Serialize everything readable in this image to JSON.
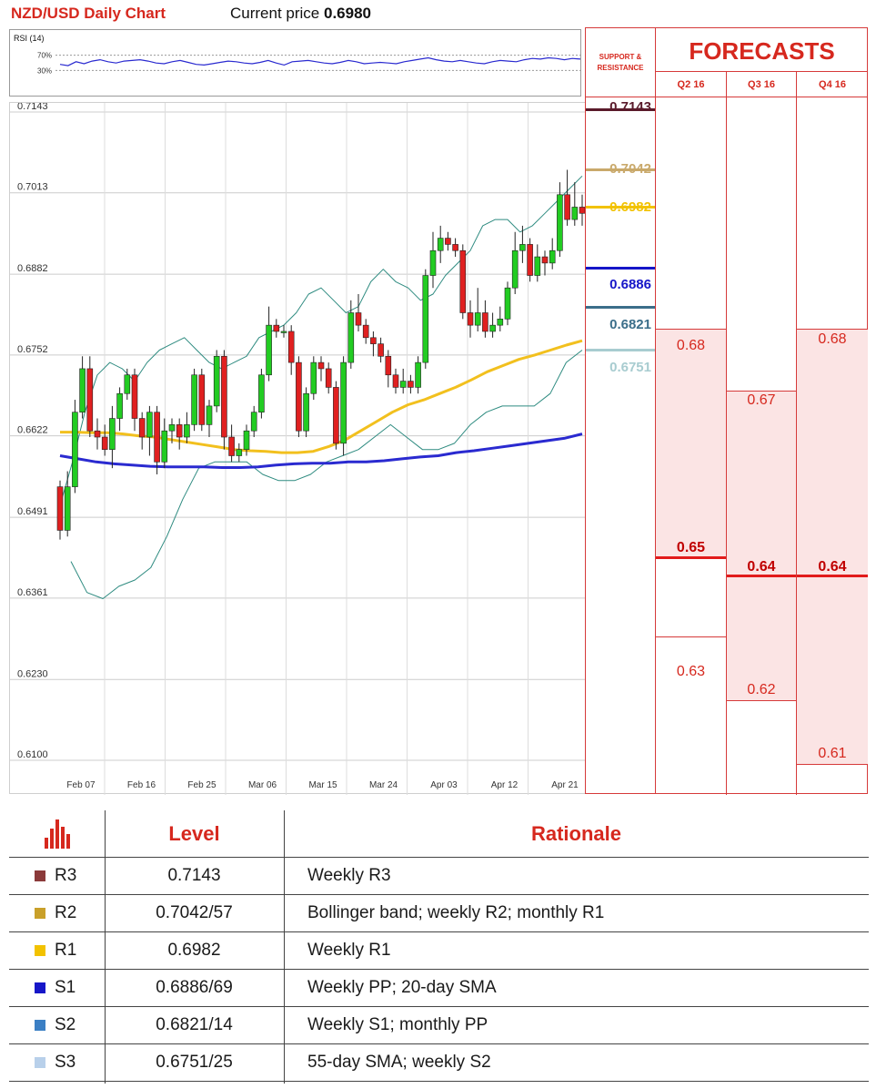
{
  "header": {
    "title": "NZD/USD Daily Chart",
    "price_label": "Current price ",
    "price_value": "0.6980"
  },
  "rsi": {
    "label": "RSI (14)",
    "hi": "70%",
    "lo": "30%",
    "values": [
      56,
      54,
      60,
      57,
      61,
      63,
      60,
      58,
      61,
      62,
      63,
      61,
      58,
      57,
      60,
      62,
      59,
      56,
      55,
      57,
      59,
      61,
      60,
      58,
      57,
      59,
      62,
      58,
      55,
      60,
      61,
      62,
      60,
      58,
      57,
      59,
      62,
      60,
      57,
      58,
      59,
      58,
      57,
      60,
      62,
      64,
      66,
      63,
      61,
      60,
      62,
      60,
      58,
      57,
      60,
      62,
      61,
      60,
      63,
      65,
      64,
      66,
      65,
      63,
      65,
      64
    ]
  },
  "chart_data": {
    "type": "candlestick",
    "title": "NZD/USD Daily Chart",
    "y_ticks": [
      "0.7143",
      "0.7013",
      "0.6882",
      "0.6752",
      "0.6622",
      "0.6491",
      "0.6361",
      "0.6230",
      "0.6100"
    ],
    "ylim": [
      0.61,
      0.7143
    ],
    "x_ticks": [
      "Feb 07",
      "Feb 16",
      "Feb 25",
      "Mar 06",
      "Mar 15",
      "Mar 24",
      "Apr 03",
      "Apr 12",
      "Apr 21"
    ],
    "candles": [
      [
        0.654,
        0.647,
        0.655,
        0.6455
      ],
      [
        0.647,
        0.654,
        0.6565,
        0.646
      ],
      [
        0.654,
        0.666,
        0.668,
        0.653
      ],
      [
        0.666,
        0.673,
        0.675,
        0.665
      ],
      [
        0.673,
        0.663,
        0.675,
        0.662
      ],
      [
        0.663,
        0.662,
        0.665,
        0.66
      ],
      [
        0.662,
        0.66,
        0.664,
        0.659
      ],
      [
        0.66,
        0.665,
        0.667,
        0.657
      ],
      [
        0.665,
        0.669,
        0.67,
        0.663
      ],
      [
        0.669,
        0.672,
        0.673,
        0.668
      ],
      [
        0.672,
        0.665,
        0.673,
        0.663
      ],
      [
        0.665,
        0.662,
        0.666,
        0.66
      ],
      [
        0.662,
        0.666,
        0.667,
        0.659
      ],
      [
        0.666,
        0.658,
        0.667,
        0.656
      ],
      [
        0.658,
        0.663,
        0.665,
        0.657
      ],
      [
        0.663,
        0.664,
        0.665,
        0.661
      ],
      [
        0.664,
        0.662,
        0.665,
        0.66
      ],
      [
        0.662,
        0.664,
        0.666,
        0.661
      ],
      [
        0.664,
        0.672,
        0.673,
        0.663
      ],
      [
        0.672,
        0.664,
        0.673,
        0.663
      ],
      [
        0.664,
        0.667,
        0.668,
        0.662
      ],
      [
        0.667,
        0.675,
        0.676,
        0.666
      ],
      [
        0.675,
        0.662,
        0.676,
        0.66
      ],
      [
        0.662,
        0.659,
        0.664,
        0.658
      ],
      [
        0.659,
        0.66,
        0.661,
        0.658
      ],
      [
        0.66,
        0.663,
        0.664,
        0.659
      ],
      [
        0.663,
        0.666,
        0.667,
        0.662
      ],
      [
        0.666,
        0.672,
        0.673,
        0.665
      ],
      [
        0.672,
        0.68,
        0.683,
        0.671
      ],
      [
        0.68,
        0.679,
        0.681,
        0.678
      ],
      [
        0.679,
        0.679,
        0.68,
        0.678
      ],
      [
        0.679,
        0.674,
        0.68,
        0.672
      ],
      [
        0.674,
        0.663,
        0.675,
        0.662
      ],
      [
        0.663,
        0.669,
        0.67,
        0.662
      ],
      [
        0.669,
        0.674,
        0.675,
        0.668
      ],
      [
        0.674,
        0.673,
        0.675,
        0.671
      ],
      [
        0.673,
        0.67,
        0.674,
        0.669
      ],
      [
        0.67,
        0.661,
        0.671,
        0.66
      ],
      [
        0.661,
        0.674,
        0.675,
        0.659
      ],
      [
        0.674,
        0.682,
        0.684,
        0.673
      ],
      [
        0.682,
        0.68,
        0.685,
        0.679
      ],
      [
        0.68,
        0.678,
        0.681,
        0.677
      ],
      [
        0.678,
        0.677,
        0.679,
        0.675
      ],
      [
        0.677,
        0.675,
        0.678,
        0.674
      ],
      [
        0.675,
        0.672,
        0.676,
        0.67
      ],
      [
        0.672,
        0.67,
        0.673,
        0.669
      ],
      [
        0.67,
        0.671,
        0.673,
        0.669
      ],
      [
        0.671,
        0.67,
        0.672,
        0.669
      ],
      [
        0.67,
        0.674,
        0.675,
        0.669
      ],
      [
        0.674,
        0.688,
        0.689,
        0.673
      ],
      [
        0.688,
        0.692,
        0.695,
        0.686
      ],
      [
        0.692,
        0.694,
        0.696,
        0.69
      ],
      [
        0.694,
        0.693,
        0.695,
        0.692
      ],
      [
        0.693,
        0.692,
        0.694,
        0.691
      ],
      [
        0.692,
        0.682,
        0.693,
        0.681
      ],
      [
        0.682,
        0.68,
        0.684,
        0.678
      ],
      [
        0.68,
        0.682,
        0.686,
        0.679
      ],
      [
        0.682,
        0.679,
        0.684,
        0.678
      ],
      [
        0.679,
        0.68,
        0.682,
        0.678
      ],
      [
        0.68,
        0.681,
        0.683,
        0.679
      ],
      [
        0.681,
        0.686,
        0.687,
        0.68
      ],
      [
        0.686,
        0.692,
        0.695,
        0.685
      ],
      [
        0.692,
        0.693,
        0.696,
        0.69
      ],
      [
        0.693,
        0.688,
        0.694,
        0.687
      ],
      [
        0.688,
        0.691,
        0.693,
        0.687
      ],
      [
        0.691,
        0.69,
        0.692,
        0.688
      ],
      [
        0.69,
        0.692,
        0.694,
        0.689
      ],
      [
        0.692,
        0.701,
        0.703,
        0.691
      ],
      [
        0.701,
        0.697,
        0.705,
        0.696
      ],
      [
        0.697,
        0.699,
        0.703,
        0.696
      ],
      [
        0.699,
        0.698,
        0.701,
        0.696
      ]
    ],
    "sma_yellow": [
      0.6628,
      0.6628,
      0.6627,
      0.6627,
      0.6625,
      0.6622,
      0.662,
      0.6616,
      0.6612,
      0.6608,
      0.6604,
      0.66,
      0.6598,
      0.6597,
      0.6595,
      0.6595,
      0.6597,
      0.6605,
      0.6615,
      0.663,
      0.6645,
      0.666,
      0.6672,
      0.668,
      0.669,
      0.67,
      0.6712,
      0.6725,
      0.6735,
      0.6745,
      0.6752,
      0.676,
      0.6768,
      0.6775
    ],
    "sma_blue": [
      0.659,
      0.6585,
      0.658,
      0.6577,
      0.6575,
      0.6573,
      0.6572,
      0.6572,
      0.6572,
      0.6571,
      0.6571,
      0.6572,
      0.6575,
      0.6577,
      0.6578,
      0.6578,
      0.658,
      0.658,
      0.6582,
      0.6585,
      0.6588,
      0.659,
      0.6595,
      0.6598,
      0.6602,
      0.6606,
      0.661,
      0.6614,
      0.6618,
      0.6625
    ],
    "bb_upper": [
      0.651,
      0.658,
      0.666,
      0.672,
      0.674,
      0.673,
      0.671,
      0.674,
      0.676,
      0.677,
      0.678,
      0.676,
      0.674,
      0.673,
      0.674,
      0.675,
      0.678,
      0.679,
      0.68,
      0.682,
      0.685,
      0.686,
      0.684,
      0.682,
      0.683,
      0.687,
      0.689,
      0.687,
      0.686,
      0.684,
      0.685,
      0.688,
      0.69,
      0.692,
      0.696,
      0.697,
      0.697,
      0.695,
      0.696,
      0.698,
      0.7,
      0.702,
      0.704
    ],
    "bb_lower": [
      0.642,
      0.637,
      0.636,
      0.638,
      0.639,
      0.641,
      0.646,
      0.652,
      0.657,
      0.658,
      0.658,
      0.658,
      0.656,
      0.655,
      0.655,
      0.656,
      0.658,
      0.659,
      0.66,
      0.662,
      0.664,
      0.662,
      0.66,
      0.66,
      0.661,
      0.664,
      0.666,
      0.667,
      0.667,
      0.667,
      0.669,
      0.674,
      0.676
    ],
    "sr_levels": [
      {
        "label": "0.7143",
        "value": 0.7143,
        "color": "#5a1a2a"
      },
      {
        "label": "0.7042",
        "value": 0.7042,
        "color": "#c9a96b"
      },
      {
        "label": "0.6982",
        "value": 0.6982,
        "color": "#f2c200"
      },
      {
        "label": "0.6886",
        "value": 0.6886,
        "color": "#1616c8"
      },
      {
        "label": "0.6821",
        "value": 0.6821,
        "color": "#3b6e8a"
      },
      {
        "label": "0.6751",
        "value": 0.6751,
        "color": "#a8ccd0"
      }
    ]
  },
  "sr_header": {
    "line1": "SUPPORT &",
    "line2": "RESISTANCE"
  },
  "forecasts": {
    "title": "FORECASTS",
    "columns": [
      {
        "header": "Q2 16",
        "high": "0.68",
        "mid": "0.65",
        "low": "0.63"
      },
      {
        "header": "Q3 16",
        "high": "0.67",
        "mid": "0.64",
        "low": "0.62"
      },
      {
        "header": "Q4 16",
        "high": "0.68",
        "mid": "0.64",
        "low": "0.61"
      }
    ]
  },
  "table": {
    "icon": "bar-chart-icon",
    "level_header": "Level",
    "rationale_header": "Rationale",
    "rows": [
      {
        "code": "R3",
        "color": "#8b3a3a",
        "level": "0.7143",
        "rationale": "Weekly R3"
      },
      {
        "code": "R2",
        "color": "#c9a02a",
        "level": "0.7042/57",
        "rationale": "Bollinger band; weekly R2; monthly R1"
      },
      {
        "code": "R1",
        "color": "#f2c200",
        "level": "0.6982",
        "rationale": "Weekly R1"
      },
      {
        "code": "S1",
        "color": "#1616c8",
        "level": "0.6886/69",
        "rationale": "Weekly PP; 20-day SMA"
      },
      {
        "code": "S2",
        "color": "#3b7fc4",
        "level": "0.6821/14",
        "rationale": "Weekly S1; monthly PP"
      },
      {
        "code": "S3",
        "color": "#b8d0ea",
        "level": "0.6751/25",
        "rationale": "55-day SMA; weekly S2"
      }
    ]
  }
}
